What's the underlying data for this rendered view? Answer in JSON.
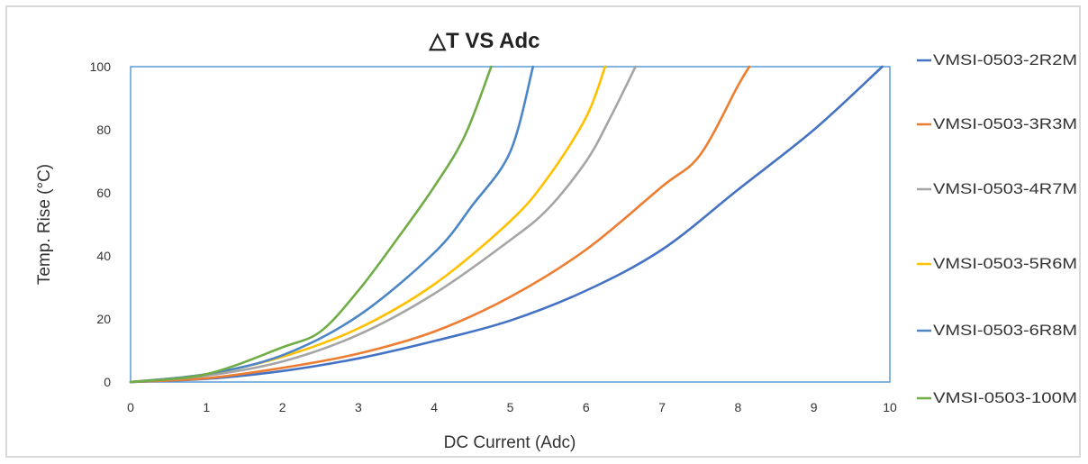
{
  "chart_data": {
    "type": "line",
    "title": "△T VS Adc",
    "xlabel": "DC Current (Adc)",
    "ylabel": "Temp. Rise (°C)",
    "xlim": [
      0,
      10
    ],
    "ylim": [
      0,
      100
    ],
    "x_ticks": [
      "0",
      "1",
      "2",
      "3",
      "4",
      "5",
      "6",
      "7",
      "8",
      "9",
      "10"
    ],
    "y_ticks": [
      "0",
      "20",
      "40",
      "60",
      "80",
      "100"
    ],
    "grid": false,
    "legend_position": "right",
    "series": [
      {
        "name": "VMSI-0503-2R2M",
        "color": "#4472c4",
        "x": [
          0,
          1,
          2,
          3,
          4,
          5,
          6,
          7,
          8,
          9,
          9.9
        ],
        "y": [
          0,
          1,
          3.5,
          7.5,
          13,
          19.5,
          29,
          42,
          61,
          80,
          100
        ]
      },
      {
        "name": "VMSI-0503-3R3M",
        "color": "#ed7d31",
        "x": [
          0,
          1,
          2,
          3,
          4,
          5,
          6,
          7,
          7.5,
          8,
          8.15
        ],
        "y": [
          0,
          1.2,
          4.5,
          9,
          16,
          27,
          42,
          62,
          72,
          94,
          100
        ]
      },
      {
        "name": "VMSI-0503-4R7M",
        "color": "#a5a5a5",
        "x": [
          0,
          1,
          2,
          3,
          4,
          5,
          5.5,
          6,
          6.3,
          6.65
        ],
        "y": [
          0,
          2,
          6.5,
          15,
          28,
          45,
          55,
          70,
          83,
          100
        ]
      },
      {
        "name": "VMSI-0503-5R6M",
        "color": "#ffc000",
        "x": [
          0,
          1,
          2,
          3,
          4,
          5,
          5.5,
          6,
          6.25
        ],
        "y": [
          0,
          2.5,
          8,
          17,
          31,
          51,
          65,
          84,
          100
        ]
      },
      {
        "name": "VMSI-0503-6R8M",
        "color": "#4c86c6",
        "x": [
          0,
          1,
          2,
          3,
          4,
          4.5,
          5,
          5.3
        ],
        "y": [
          0,
          2.5,
          8.5,
          21,
          41,
          56,
          73,
          100
        ]
      },
      {
        "name": "VMSI-0503-100M",
        "color": "#70ad47",
        "x": [
          0,
          1,
          2,
          2.5,
          3,
          3.5,
          4,
          4.4,
          4.75
        ],
        "y": [
          0,
          2.5,
          11,
          16,
          29,
          45,
          62,
          78,
          100
        ]
      }
    ]
  }
}
